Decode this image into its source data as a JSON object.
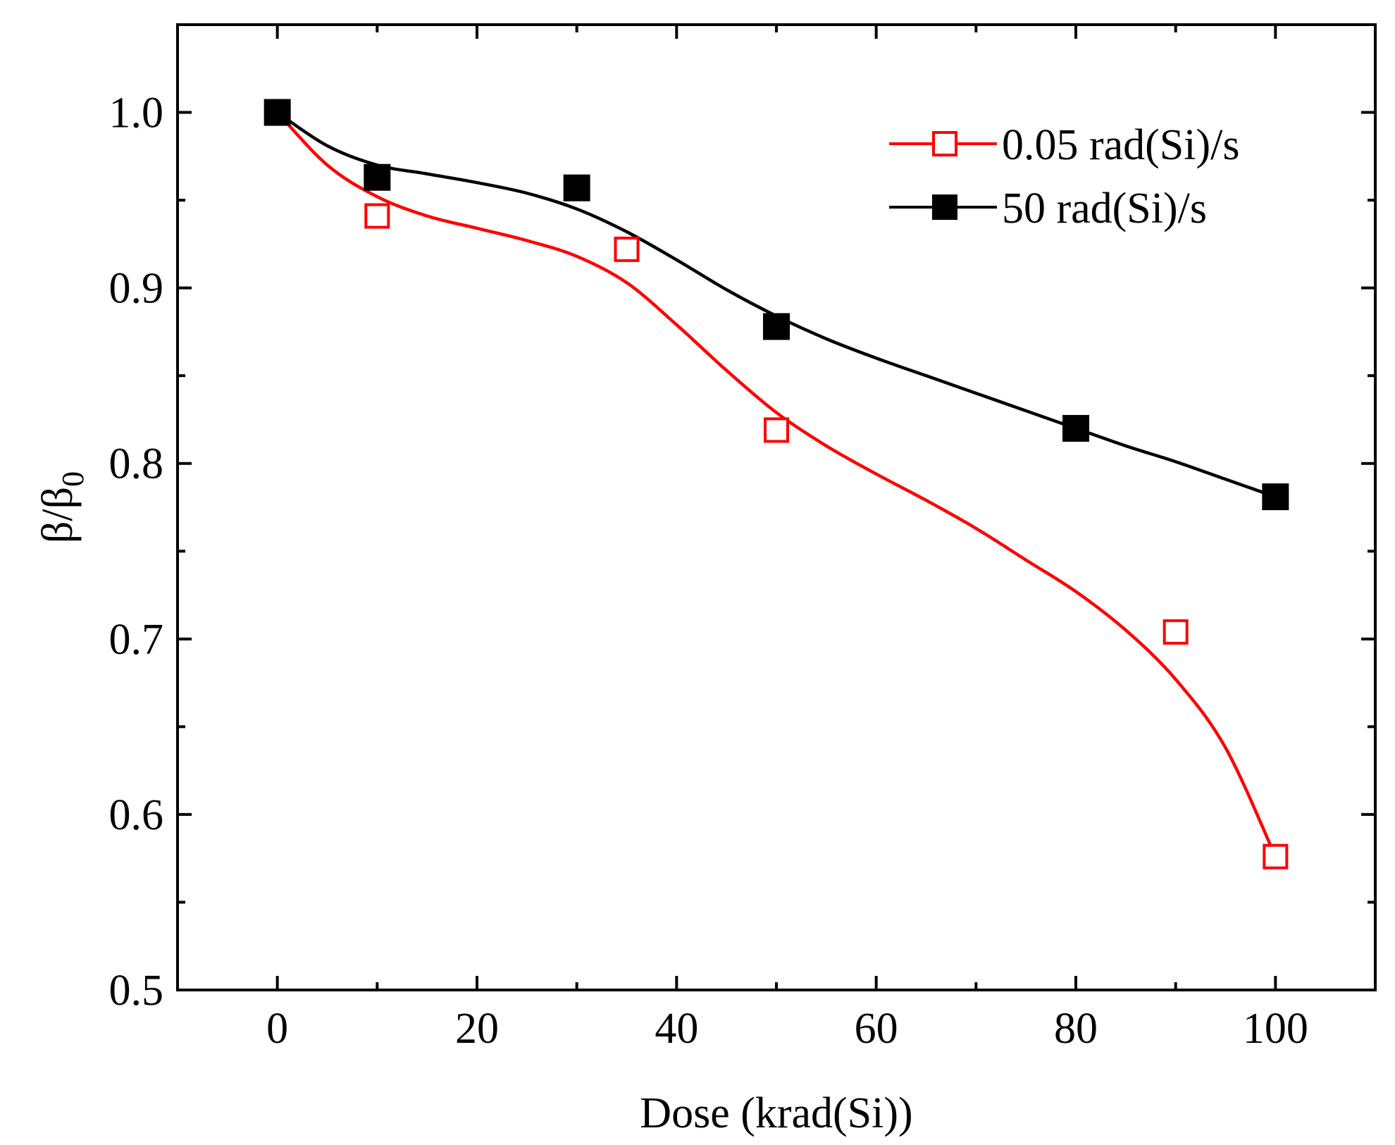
{
  "chart_data": {
    "type": "scatter",
    "title": "",
    "xlabel": "Dose (krad(Si))",
    "ylabel_main": "β/β",
    "ylabel_sub": "0",
    "xlim": [
      -10,
      110
    ],
    "ylim": [
      0.5,
      1.05
    ],
    "xticks": [
      0,
      20,
      40,
      60,
      80,
      100
    ],
    "xtick_labels": [
      "0",
      "20",
      "40",
      "60",
      "80",
      "100"
    ],
    "yticks": [
      0.5,
      0.6,
      0.7,
      0.8,
      0.9,
      1.0
    ],
    "ytick_labels": [
      "0.5",
      "0.6",
      "0.7",
      "0.8",
      "0.9",
      "1.0"
    ],
    "grid": false,
    "legend_position": "top-right",
    "series": [
      {
        "name": "0.05 rad(Si)/s",
        "color": "#ff0000",
        "marker": "open-square",
        "x": [
          0,
          10,
          35,
          50,
          90,
          100
        ],
        "y": [
          1.0,
          0.941,
          0.922,
          0.819,
          0.704,
          0.576
        ],
        "fit_x": [
          0,
          5,
          10,
          15,
          20,
          25,
          30,
          35,
          40,
          45,
          50,
          55,
          60,
          65,
          70,
          75,
          80,
          85,
          90,
          95,
          100
        ],
        "fit_y": [
          1.0,
          0.97,
          0.952,
          0.941,
          0.934,
          0.927,
          0.918,
          0.903,
          0.879,
          0.853,
          0.829,
          0.81,
          0.794,
          0.779,
          0.763,
          0.745,
          0.727,
          0.705,
          0.677,
          0.638,
          0.576
        ]
      },
      {
        "name": "50 rad(Si)/s",
        "color": "#000000",
        "marker": "filled-square",
        "x": [
          0,
          10,
          30,
          50,
          80,
          100
        ],
        "y": [
          1.0,
          0.963,
          0.957,
          0.878,
          0.82,
          0.781
        ],
        "fit_x": [
          0,
          5,
          10,
          15,
          20,
          25,
          30,
          35,
          40,
          45,
          50,
          55,
          60,
          65,
          70,
          75,
          80,
          85,
          90,
          95,
          100
        ],
        "fit_y": [
          1.0,
          0.981,
          0.97,
          0.965,
          0.96,
          0.954,
          0.945,
          0.932,
          0.916,
          0.899,
          0.884,
          0.871,
          0.86,
          0.85,
          0.84,
          0.83,
          0.82,
          0.81,
          0.801,
          0.791,
          0.781
        ]
      }
    ]
  }
}
